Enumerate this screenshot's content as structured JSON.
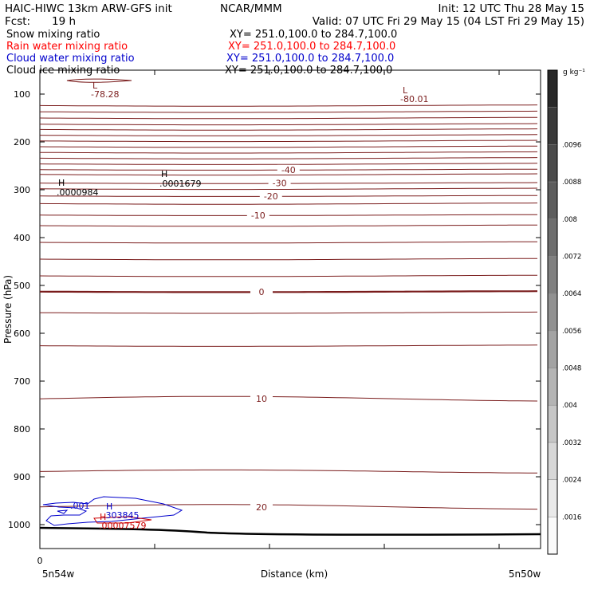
{
  "header": {
    "title_left": "HAIC-HIWC 13km ARW-GFS init",
    "title_center": "NCAR/MMM",
    "init": "Init: 12 UTC Thu 28 May 15",
    "fcst_label": "Fcst:",
    "fcst_value": "19 h",
    "valid": "Valid: 07 UTC Fri 29 May 15 (04 LST Fri 29 May 15)"
  },
  "legend_fields": [
    {
      "name": "Snow mixing ratio",
      "xy": "XY= 251.0,100.0 to 284.7,100.0",
      "color": "#000000"
    },
    {
      "name": "Rain water mixing ratio",
      "xy": "XY= 251.0,100.0 to 284.7,100.0",
      "color": "#ff0000"
    },
    {
      "name": "Cloud water mixing ratio",
      "xy": "XY= 251.0,100.0 to 284.7,100.0",
      "color": "#0000cc"
    },
    {
      "name": "Cloud ice mixing ratio",
      "xy": "XY= 251.0,100.0 to 284.7,100.0",
      "color": "#000000"
    }
  ],
  "colors": {
    "temperature_contour": "#7a1c1c",
    "terrain": "#000000",
    "cloud_water": "#0000cc",
    "rain": "#cc0000"
  },
  "chart_data": {
    "type": "line",
    "title": "",
    "xlabel": "Distance (km)",
    "ylabel": "Pressure (hPa)",
    "x_ticks": [
      "0"
    ],
    "x_end_labels": [
      "5n54w",
      "5n50w"
    ],
    "y_ticks": [
      100,
      200,
      300,
      400,
      500,
      600,
      700,
      800,
      900,
      1000
    ],
    "ylim": [
      1050,
      50
    ],
    "y_scale": "linear-reversed",
    "grid": false,
    "temperature_contours": [
      {
        "label": "-40",
        "pressure": 258
      },
      {
        "label": "-30",
        "pressure": 286
      },
      {
        "label": "-20",
        "pressure": 313
      },
      {
        "label": "-10",
        "pressure": 353
      },
      {
        "label": "0",
        "pressure": 513
      },
      {
        "label": "10",
        "pressure": 737
      },
      {
        "label": "20",
        "pressure": 963
      }
    ],
    "extrema_labels": [
      {
        "symbol": "L",
        "value": "-78.28"
      },
      {
        "symbol": "L",
        "value": "-80.01"
      },
      {
        "symbol": "H",
        "value": ".0000984"
      },
      {
        "symbol": "H",
        "value": ".0001679"
      },
      {
        "symbol": "H",
        "value": ".303845"
      },
      {
        "symbol": "H",
        "value": ".00007579"
      },
      {
        "symbol": "",
        "value": ".001"
      }
    ],
    "colorbar": {
      "unit": "g kg⁻¹",
      "tick_labels": [
        ".0096",
        ".0088",
        ".008",
        ".0072",
        ".0064",
        ".0056",
        ".0048",
        ".004",
        ".0032",
        ".0024",
        ".0016"
      ]
    }
  }
}
